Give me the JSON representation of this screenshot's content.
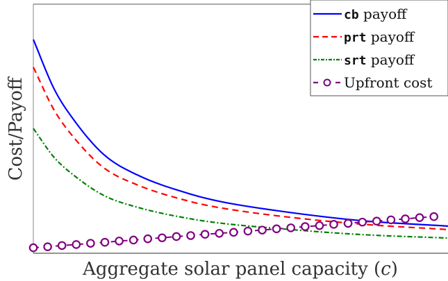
{
  "chart_data": {
    "type": "line",
    "title": "",
    "xlabel": "Aggregate solar panel capacity",
    "xlabel_symbol": "c",
    "ylabel": "Cost/Payoff",
    "xlim": [
      0,
      1
    ],
    "ylim": [
      0,
      1
    ],
    "x_ticks": [],
    "y_ticks": [],
    "grid": false,
    "legend_position": "top-right",
    "series": [
      {
        "name": "cb payoff",
        "legend_code": "cb",
        "legend_suffix": " payoff",
        "color": "#0000ff",
        "style": "solid",
        "x": [
          0,
          0.05,
          0.1,
          0.17,
          0.25,
          0.38,
          0.456,
          0.6,
          0.79,
          1.0
        ],
        "y": [
          0.858,
          0.66,
          0.53,
          0.396,
          0.315,
          0.237,
          0.206,
          0.168,
          0.131,
          0.109
        ]
      },
      {
        "name": "prt payoff",
        "legend_code": "prt",
        "legend_suffix": " payoff",
        "color": "#ff0000",
        "style": "dashed",
        "x": [
          0,
          0.05,
          0.1,
          0.17,
          0.25,
          0.38,
          0.456,
          0.6,
          0.79,
          1.0
        ],
        "y": [
          0.747,
          0.575,
          0.46,
          0.343,
          0.275,
          0.207,
          0.181,
          0.148,
          0.117,
          0.095
        ]
      },
      {
        "name": "srt payoff",
        "legend_code": "srt",
        "legend_suffix": " payoff",
        "color": "#008000",
        "style": "dashdot",
        "x": [
          0,
          0.05,
          0.1,
          0.17,
          0.25,
          0.38,
          0.456,
          0.6,
          0.79,
          1.0
        ],
        "y": [
          0.501,
          0.385,
          0.31,
          0.232,
          0.185,
          0.138,
          0.12,
          0.098,
          0.075,
          0.061
        ]
      },
      {
        "name": "Upfront cost",
        "legend_code": "",
        "legend_suffix": "Upfront cost",
        "color": "#800080",
        "style": "dashed-circle-markers",
        "x": [
          0.0,
          0.0345,
          0.069,
          0.1035,
          0.138,
          0.1725,
          0.207,
          0.2415,
          0.276,
          0.3105,
          0.345,
          0.3795,
          0.414,
          0.4485,
          0.483,
          0.5175,
          0.552,
          0.5865,
          0.621,
          0.6555,
          0.69,
          0.7245,
          0.759,
          0.7935,
          0.828,
          0.8625,
          0.897,
          0.9315,
          0.966
        ],
        "y": [
          0.022,
          0.026,
          0.031,
          0.035,
          0.04,
          0.044,
          0.049,
          0.053,
          0.058,
          0.062,
          0.067,
          0.071,
          0.076,
          0.08,
          0.084,
          0.089,
          0.093,
          0.098,
          0.102,
          0.107,
          0.111,
          0.116,
          0.12,
          0.125,
          0.129,
          0.134,
          0.138,
          0.143,
          0.147
        ]
      }
    ]
  }
}
